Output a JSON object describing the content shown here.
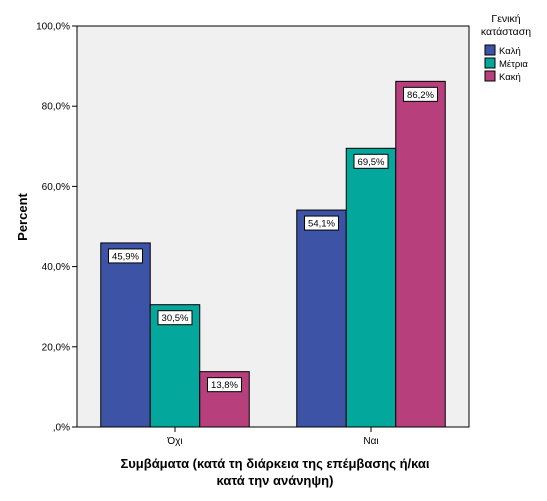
{
  "chart_data": {
    "type": "bar",
    "categories": [
      "Όχι",
      "Ναι"
    ],
    "series": [
      {
        "name": "Καλή",
        "values": [
          45.9,
          54.1
        ],
        "color": "#3d53a6"
      },
      {
        "name": "Μέτρια",
        "values": [
          30.5,
          69.5
        ],
        "color": "#03a79b"
      },
      {
        "name": "Κακή",
        "values": [
          13.8,
          86.2
        ],
        "color": "#b63f7c"
      }
    ],
    "data_labels": [
      [
        "45,9%",
        "54,1%"
      ],
      [
        "30,5%",
        "69,5%"
      ],
      [
        "13,8%",
        "86,2%"
      ]
    ],
    "ylim": [
      0,
      100
    ],
    "yticks": [
      0,
      20,
      40,
      60,
      80,
      100
    ],
    "ytick_labels": [
      ",0%",
      "20,0%",
      "40,0%",
      "60,0%",
      "80,0%",
      "100,0%"
    ],
    "ylabel": "Percent",
    "xlabel_lines": [
      "Συμβάματα (κατά τη διάρκεια της επέμβασης ή/και",
      "κατά την ανάνηψη)"
    ],
    "legend": {
      "title_lines": [
        "Γενική",
        "κατάσταση"
      ],
      "position": "right"
    },
    "grid": false,
    "background_color": "#f0f0f0"
  }
}
